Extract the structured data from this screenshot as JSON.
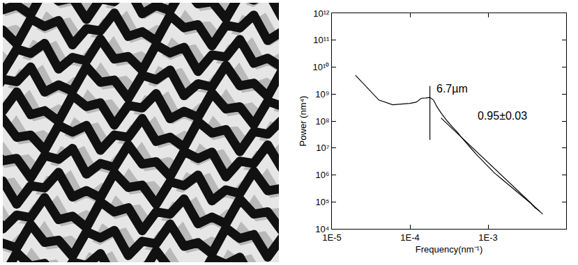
{
  "chart_data": {
    "type": "line",
    "log": true,
    "grid": false,
    "xlabel": "Frequency(nm⁻¹)",
    "ylabel": "Power (nm⁴)",
    "xlim": [
      1e-05,
      0.01
    ],
    "ylim": [
      10000.0,
      1000000000000.0
    ],
    "xticks": [
      {
        "value": 1e-05,
        "label": "1E-5"
      },
      {
        "value": 0.0001,
        "label": "1E-4"
      },
      {
        "value": 0.001,
        "label": "1E-3"
      }
    ],
    "yticks": [
      {
        "value": 10000.0,
        "label": "10⁴"
      },
      {
        "value": 100000.0,
        "label": "10⁵"
      },
      {
        "value": 1000000.0,
        "label": "10⁶"
      },
      {
        "value": 10000000.0,
        "label": "10⁷"
      },
      {
        "value": 100000000.0,
        "label": "10⁸"
      },
      {
        "value": 1000000000.0,
        "label": "10⁹"
      },
      {
        "value": 10000000000.0,
        "label": "10¹⁰"
      },
      {
        "value": 100000000000.0,
        "label": "10¹¹"
      },
      {
        "value": 1000000000000.0,
        "label": "10¹²"
      }
    ],
    "series": [
      {
        "color": "#000000",
        "line_style": "solid",
        "x": [
          2e-05,
          4e-05,
          6e-05,
          8e-05,
          0.0001,
          0.00012,
          0.00014,
          0.00016,
          0.00018,
          0.0002,
          0.00022,
          0.00025,
          0.0003,
          0.00035,
          0.0004,
          0.00045,
          0.0005,
          0.0006,
          0.0007,
          0.0008,
          0.0009,
          0.001,
          0.0012,
          0.0015,
          0.0018,
          0.002,
          0.0025,
          0.003,
          0.0035,
          0.004,
          0.0046
        ],
        "values": [
          5000000000.0,
          600000000.0,
          400000000.0,
          420000000.0,
          450000000.0,
          500000000.0,
          700000000.0,
          720000000.0,
          750000000.0,
          600000000.0,
          350000000.0,
          200000000.0,
          100000000.0,
          60000000.0,
          40000000.0,
          26000000.0,
          18000000.0,
          10000000.0,
          6000000.0,
          4000000.0,
          2800000.0,
          2000000.0,
          1200000.0,
          700000.0,
          450000.0,
          350000.0,
          200000.0,
          130000.0,
          90000.0,
          60000.0,
          45000.0
        ]
      },
      {
        "color": "#000000",
        "line_style": "solid",
        "x": [
          0.00025,
          0.005
        ],
        "values": [
          130000000.0,
          35000.0
        ]
      },
      {
        "color": "#000000",
        "line_style": "solid",
        "x": [
          0.00018,
          0.00018
        ],
        "values": [
          20000000.0,
          2000000000.0
        ]
      }
    ],
    "annotations": [
      {
        "text": "6.7µm",
        "x": 0.00021,
        "y": 1600000000.0
      },
      {
        "text": "0.95±0.03",
        "x": 0.0007,
        "y": 160000000.0
      }
    ]
  }
}
